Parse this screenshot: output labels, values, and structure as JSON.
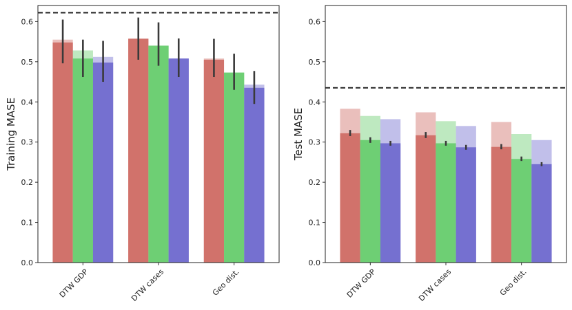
{
  "chart_data": [
    {
      "type": "bar",
      "ylabel": "Training MASE",
      "ylim": [
        0,
        0.64
      ],
      "yticks": [
        "0.0",
        "0.1",
        "0.2",
        "0.3",
        "0.4",
        "0.5",
        "0.6"
      ],
      "categories": [
        "DTW GDP",
        "DTW cases",
        "Geo dist."
      ],
      "baseline": 0.622,
      "series": [
        {
          "color": "#d1726b",
          "values": [
            0.548,
            0.557,
            0.505
          ],
          "light_values": [
            0.555,
            0.558,
            0.508
          ],
          "err_low": [
            0.496,
            0.505,
            0.462
          ],
          "err_high": [
            0.605,
            0.61,
            0.557
          ]
        },
        {
          "color": "#6ecf74",
          "values": [
            0.508,
            0.54,
            0.473
          ],
          "light_values": [
            0.528,
            0.54,
            0.473
          ],
          "err_low": [
            0.462,
            0.49,
            0.43
          ],
          "err_high": [
            0.555,
            0.598,
            0.52
          ]
        },
        {
          "color": "#7570d0",
          "values": [
            0.498,
            0.508,
            0.435
          ],
          "light_values": [
            0.512,
            0.508,
            0.443
          ],
          "err_low": [
            0.45,
            0.462,
            0.395
          ],
          "err_high": [
            0.552,
            0.558,
            0.477
          ]
        }
      ]
    },
    {
      "type": "bar",
      "ylabel": "Test MASE",
      "ylim": [
        0,
        0.64
      ],
      "yticks": [
        "0.0",
        "0.1",
        "0.2",
        "0.3",
        "0.4",
        "0.5",
        "0.6"
      ],
      "categories": [
        "DTW GDP",
        "DTW cases",
        "Geo dist."
      ],
      "baseline": 0.435,
      "series": [
        {
          "color": "#d1726b",
          "values": [
            0.322,
            0.317,
            0.288
          ],
          "light_values": [
            0.383,
            0.374,
            0.35
          ],
          "err_low": [
            0.315,
            0.31,
            0.282
          ],
          "err_high": [
            0.33,
            0.325,
            0.295
          ]
        },
        {
          "color": "#6ecf74",
          "values": [
            0.305,
            0.297,
            0.258
          ],
          "light_values": [
            0.365,
            0.352,
            0.32
          ],
          "err_low": [
            0.298,
            0.291,
            0.253
          ],
          "err_high": [
            0.312,
            0.303,
            0.264
          ]
        },
        {
          "color": "#7570d0",
          "values": [
            0.297,
            0.287,
            0.245
          ],
          "light_values": [
            0.357,
            0.34,
            0.305
          ],
          "err_low": [
            0.291,
            0.281,
            0.24
          ],
          "err_high": [
            0.303,
            0.293,
            0.25
          ]
        }
      ]
    }
  ]
}
